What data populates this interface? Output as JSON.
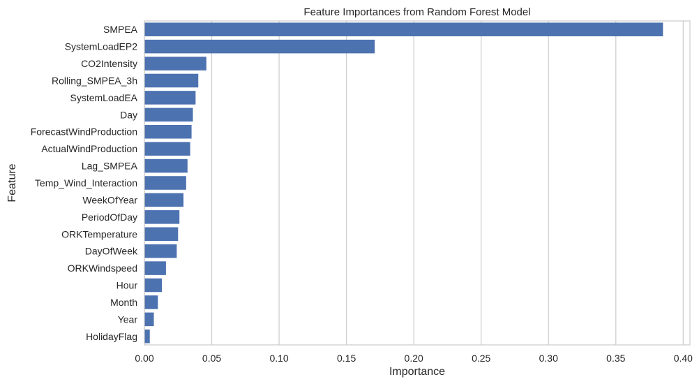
{
  "chart_data": {
    "type": "bar",
    "orientation": "horizontal",
    "title": "Feature Importances from Random Forest Model",
    "xlabel": "Importance",
    "ylabel": "Feature",
    "xlim": [
      0,
      0.405
    ],
    "xticks": [
      "0.00",
      "0.05",
      "0.10",
      "0.15",
      "0.20",
      "0.25",
      "0.30",
      "0.35",
      "0.40"
    ],
    "grid": "vertical",
    "bar_color": "#4c72b0",
    "grid_color": "#cccccc",
    "categories": [
      "SMPEA",
      "SystemLoadEP2",
      "CO2Intensity",
      "Rolling_SMPEA_3h",
      "SystemLoadEA",
      "Day",
      "ForecastWindProduction",
      "ActualWindProduction",
      "Lag_SMPEA",
      "Temp_Wind_Interaction",
      "WeekOfYear",
      "PeriodOfDay",
      "ORKTemperature",
      "DayOfWeek",
      "ORKWindspeed",
      "Hour",
      "Month",
      "Year",
      "HolidayFlag"
    ],
    "values": [
      0.385,
      0.171,
      0.046,
      0.04,
      0.038,
      0.036,
      0.035,
      0.034,
      0.032,
      0.031,
      0.029,
      0.026,
      0.025,
      0.024,
      0.016,
      0.013,
      0.01,
      0.007,
      0.004
    ]
  }
}
